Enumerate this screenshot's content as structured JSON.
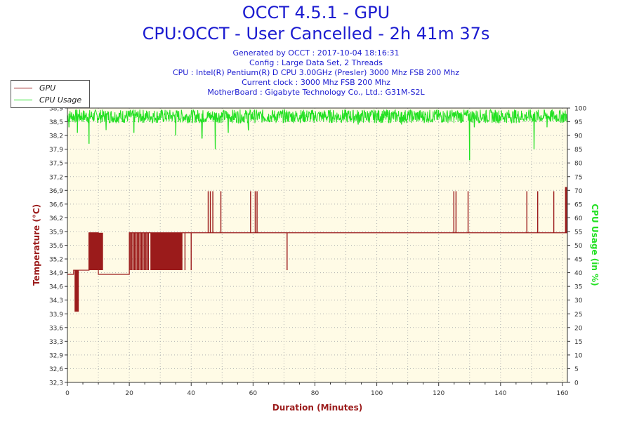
{
  "header": {
    "title": "OCCT 4.5.1 - GPU",
    "subtitle": "CPU:OCCT - User Cancelled - 2h 41m 37s",
    "info_lines": [
      "Generated by OCCT : 2017-10-04 18:16:31",
      "Config : Large Data Set, 2 Threads",
      "CPU : Intel(R) Pentium(R) D CPU 3.00GHz (Presler) 3000 Mhz FSB 200 Mhz",
      "Current clock : 3000 Mhz FSB 200 Mhz",
      "MotherBoard : Gigabyte Technology Co., Ltd.: G31M-S2L"
    ]
  },
  "legend": {
    "items": [
      "GPU",
      "CPU Usage"
    ]
  },
  "colors": {
    "gpu": "#9b1b1b",
    "cpu": "#22e022",
    "plot_bg": "#fffbe6",
    "title": "#1b1bd0",
    "axis_label": "#9b1b1b"
  },
  "chart_data": {
    "type": "line",
    "xlabel": "Duration (Minutes)",
    "ylabel_left": "Temperature (°C)",
    "ylabel_right": "CPU Usage (in %)",
    "xlim": [
      0,
      161.6
    ],
    "x_ticks": [
      0,
      20,
      40,
      60,
      80,
      100,
      120,
      140,
      160
    ],
    "ylim_left": [
      32.3,
      38.9
    ],
    "y_ticks_left": [
      "32,3",
      "32,6",
      "32,9",
      "33,3",
      "33,6",
      "33,9",
      "34,3",
      "34,6",
      "34,9",
      "35,2",
      "35,6",
      "35,9",
      "36,2",
      "36,6",
      "36,9",
      "37,2",
      "37,5",
      "37,9",
      "38,2",
      "38,5",
      "38,9"
    ],
    "ylim_right": [
      0,
      100
    ],
    "y_ticks_right": [
      0,
      5,
      10,
      15,
      20,
      25,
      30,
      35,
      40,
      45,
      50,
      55,
      60,
      65,
      70,
      75,
      80,
      85,
      90,
      95,
      100
    ],
    "grid": true,
    "series": [
      {
        "name": "GPU",
        "base_levels": [
          [
            2,
            34.9
          ],
          [
            7,
            35.0
          ],
          [
            10,
            35.9
          ],
          [
            20,
            34.9
          ],
          [
            22,
            35.9
          ],
          [
            40,
            35.9
          ],
          [
            161.6,
            35.9
          ]
        ],
        "oscillations": [
          {
            "from": 2.5,
            "to": 3.6,
            "low": 34.0,
            "high": 35.0,
            "step": 0.25
          },
          {
            "from": 7.0,
            "to": 11.4,
            "low": 35.0,
            "high": 35.9,
            "step": 0.18
          },
          {
            "from": 20.3,
            "to": 26.5,
            "low": 35.0,
            "high": 35.9,
            "step": 0.45
          },
          {
            "from": 27.0,
            "to": 37.0,
            "low": 35.0,
            "high": 35.9,
            "step": 0.25
          }
        ],
        "spikes": [
          {
            "x": 38.0,
            "y": 35.0
          },
          {
            "x": 40.0,
            "y": 35.0
          },
          {
            "x": 45.5,
            "y": 36.9
          },
          {
            "x": 46.2,
            "y": 36.9
          },
          {
            "x": 47.0,
            "y": 36.9
          },
          {
            "x": 49.6,
            "y": 36.9
          },
          {
            "x": 59.2,
            "y": 36.9
          },
          {
            "x": 60.7,
            "y": 36.9
          },
          {
            "x": 61.3,
            "y": 36.9
          },
          {
            "x": 71.0,
            "y": 35.0
          },
          {
            "x": 124.9,
            "y": 36.9
          },
          {
            "x": 125.6,
            "y": 36.9
          },
          {
            "x": 129.5,
            "y": 36.9
          },
          {
            "x": 148.5,
            "y": 36.9
          },
          {
            "x": 152.0,
            "y": 36.9
          },
          {
            "x": 157.2,
            "y": 36.9
          },
          {
            "x": 161.0,
            "y": 37.0
          },
          {
            "x": 161.3,
            "y": 37.0
          }
        ]
      },
      {
        "name": "CPU Usage",
        "baseline": 97,
        "dips": [
          {
            "x": 0.5,
            "y": 93
          },
          {
            "x": 3.2,
            "y": 91
          },
          {
            "x": 7.0,
            "y": 87
          },
          {
            "x": 12.5,
            "y": 92
          },
          {
            "x": 21.5,
            "y": 91
          },
          {
            "x": 35.0,
            "y": 90
          },
          {
            "x": 43.5,
            "y": 89
          },
          {
            "x": 47.8,
            "y": 85
          },
          {
            "x": 52.0,
            "y": 91
          },
          {
            "x": 58.5,
            "y": 92
          },
          {
            "x": 94.0,
            "y": 94
          },
          {
            "x": 108.0,
            "y": 94
          },
          {
            "x": 130.0,
            "y": 81
          },
          {
            "x": 131.5,
            "y": 93
          },
          {
            "x": 150.8,
            "y": 85
          },
          {
            "x": 155.0,
            "y": 93
          }
        ]
      }
    ]
  }
}
